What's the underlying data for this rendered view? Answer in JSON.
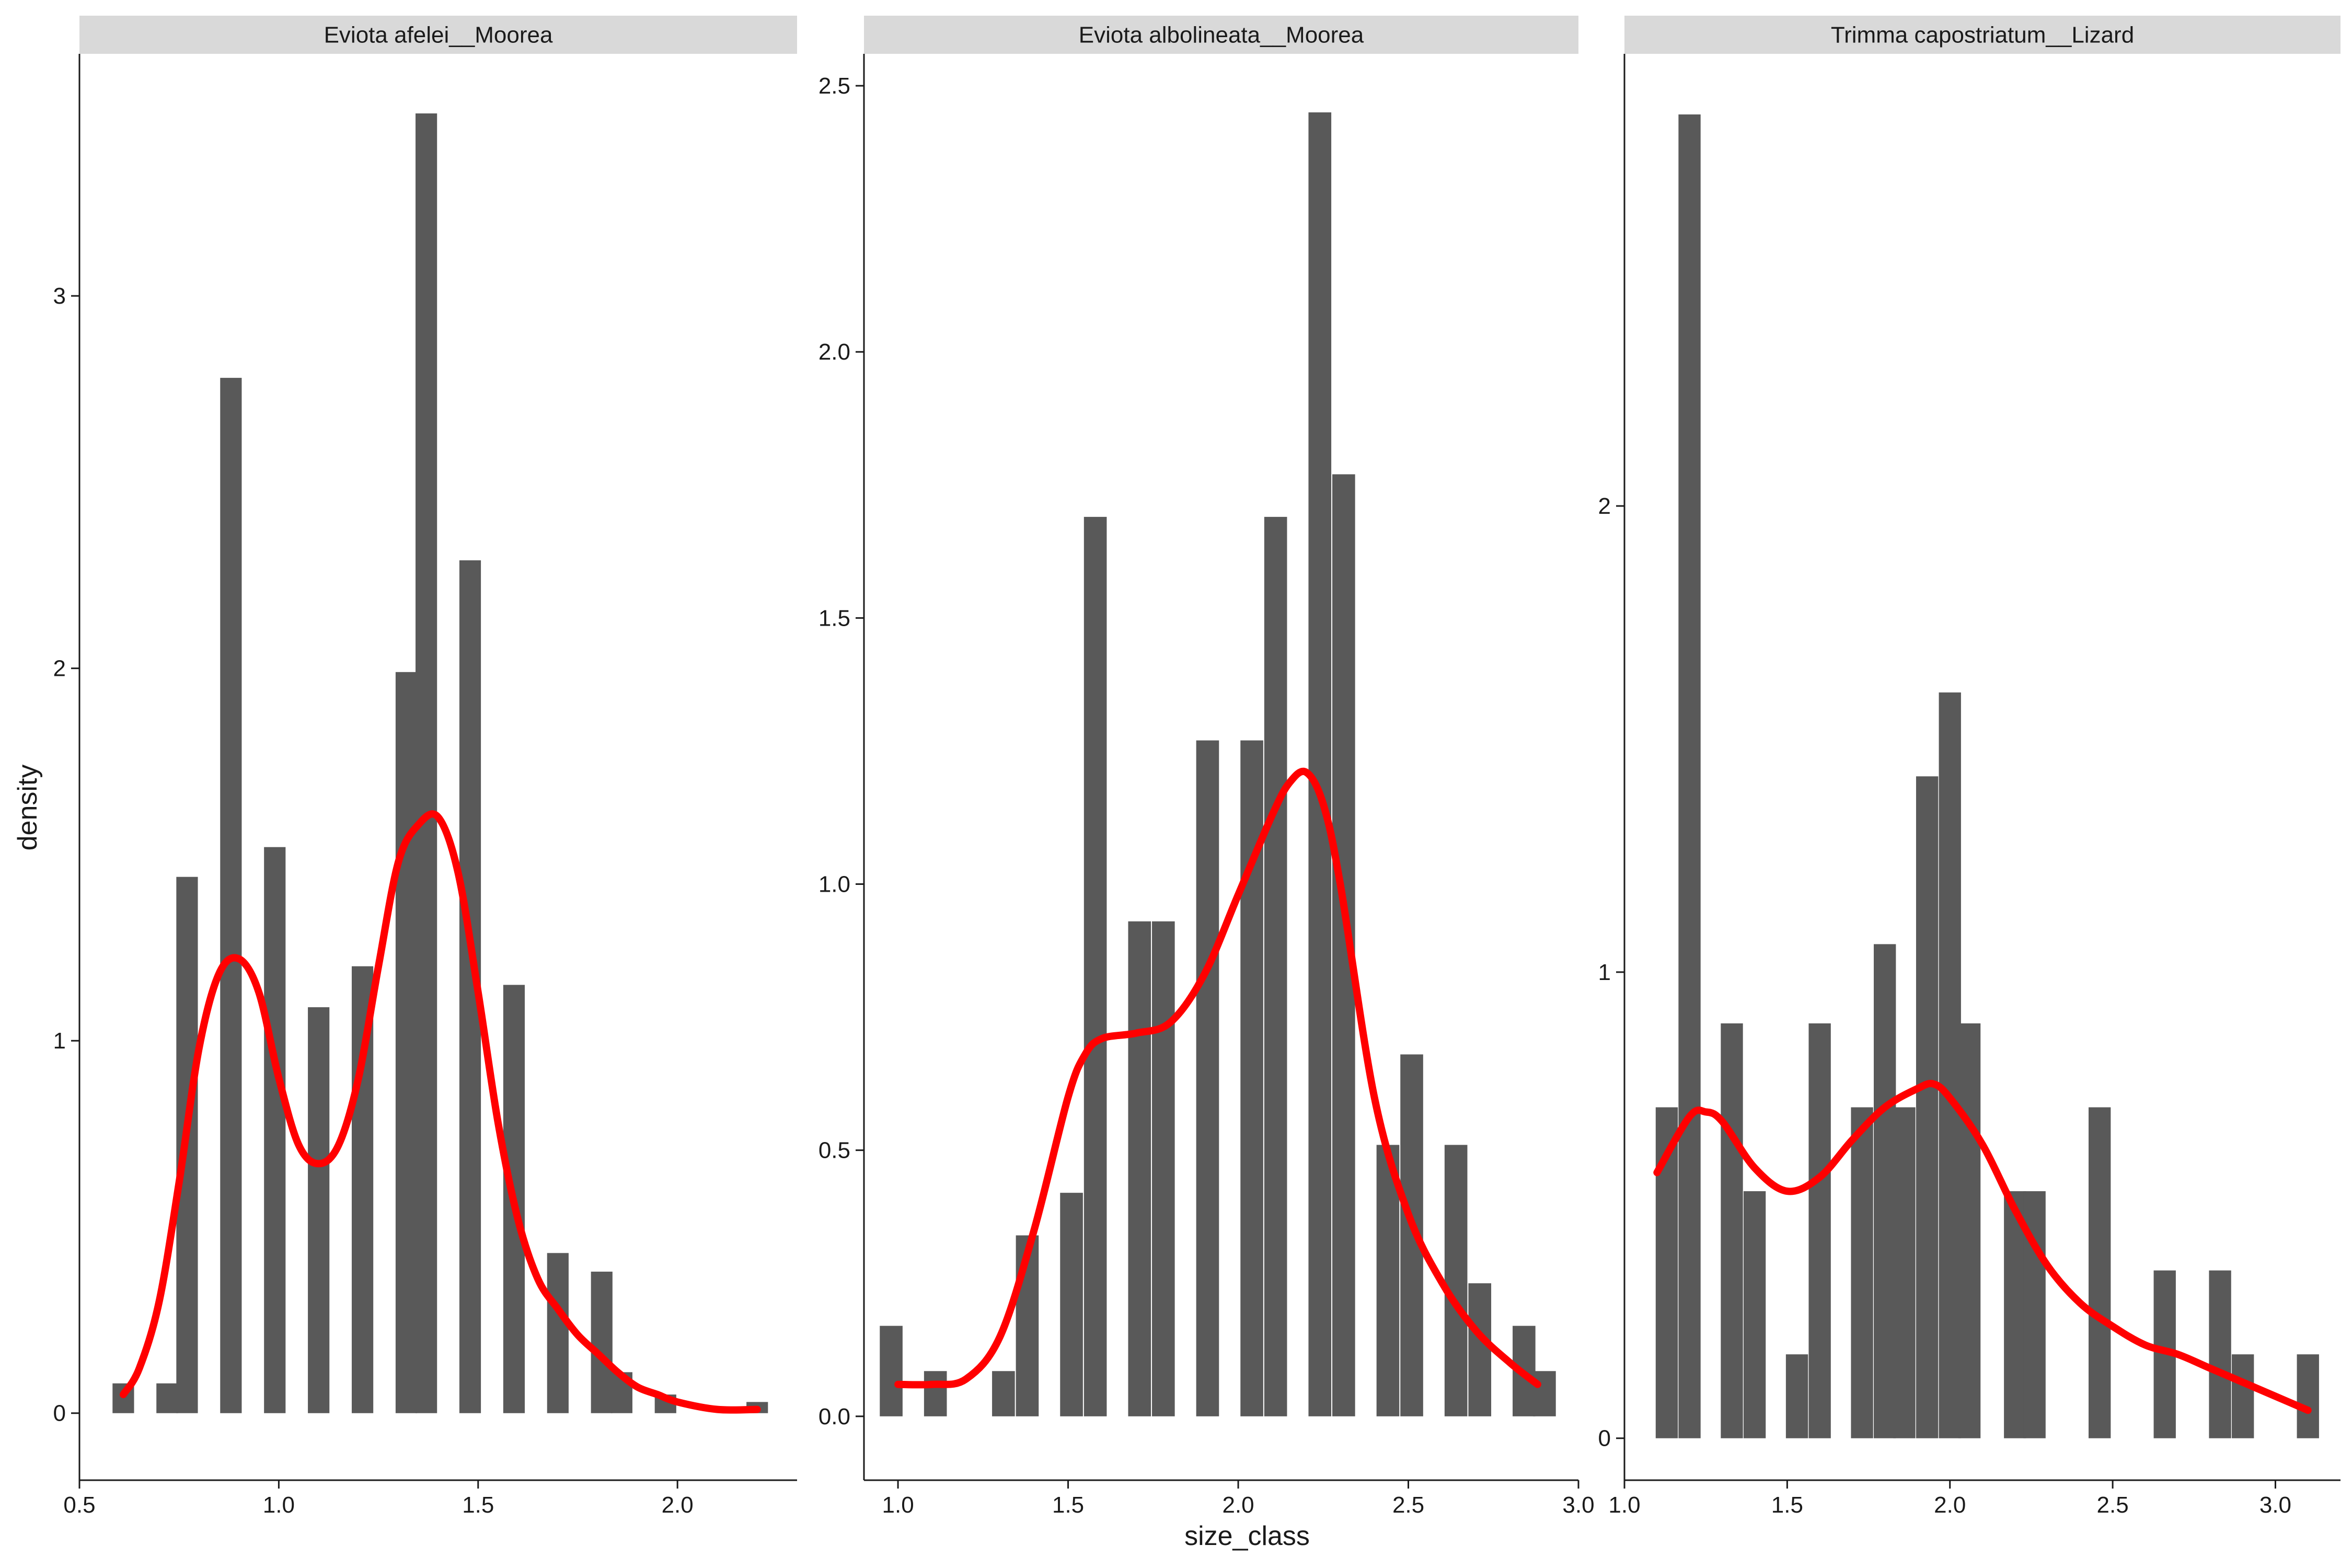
{
  "chart_data": {
    "type": "bar",
    "xlabel": "size_class",
    "ylabel": "density",
    "colors": {
      "bar": "#595959",
      "density_line": "#ff0000",
      "strip": "#d9d9d9",
      "axis": "#1a1a1a"
    },
    "legend": "none",
    "grid": false,
    "panels": [
      {
        "title": "Eviota afelei__Moorea",
        "xlim": [
          0.5,
          2.3
        ],
        "ylim": [
          -0.18,
          3.65
        ],
        "x_ticks": [
          0.5,
          1.0,
          1.5,
          2.0
        ],
        "x_tick_labels": [
          "0.5",
          "1.0",
          "1.5",
          "2.0"
        ],
        "y_ticks": [
          0,
          1,
          2,
          3
        ],
        "y_tick_labels": [
          "0",
          "1",
          "2",
          "3"
        ],
        "bin_width": 0.054,
        "bars": {
          "x": [
            0.61,
            0.72,
            0.77,
            0.88,
            0.99,
            1.1,
            1.21,
            1.32,
            1.37,
            1.48,
            1.59,
            1.7,
            1.81,
            1.86,
            1.97,
            2.2
          ],
          "density": [
            0.08,
            0.08,
            1.44,
            2.78,
            1.52,
            1.09,
            1.2,
            1.99,
            3.49,
            2.29,
            1.15,
            0.43,
            0.38,
            0.11,
            0.05,
            0.03
          ]
        },
        "density_curve": {
          "x": [
            0.61,
            0.65,
            0.7,
            0.75,
            0.8,
            0.85,
            0.9,
            0.95,
            1.0,
            1.05,
            1.1,
            1.15,
            1.2,
            1.25,
            1.3,
            1.35,
            1.4,
            1.45,
            1.5,
            1.55,
            1.6,
            1.65,
            1.7,
            1.75,
            1.8,
            1.85,
            1.9,
            1.95,
            2.0,
            2.1,
            2.2
          ],
          "y": [
            0.05,
            0.12,
            0.3,
            0.62,
            0.98,
            1.18,
            1.22,
            1.13,
            0.9,
            0.72,
            0.67,
            0.72,
            0.9,
            1.2,
            1.48,
            1.58,
            1.6,
            1.45,
            1.13,
            0.78,
            0.52,
            0.36,
            0.28,
            0.21,
            0.16,
            0.11,
            0.07,
            0.05,
            0.03,
            0.01,
            0.01
          ]
        }
      },
      {
        "title": "Eviota albolineata__Moorea",
        "xlim": [
          0.9,
          3.0
        ],
        "ylim": [
          -0.12,
          2.56
        ],
        "x_ticks": [
          1.0,
          1.5,
          2.0,
          2.5,
          3.0
        ],
        "x_tick_labels": [
          "1.0",
          "1.5",
          "2.0",
          "2.5",
          "3.0"
        ],
        "y_ticks": [
          0.0,
          0.5,
          1.0,
          1.5,
          2.0,
          2.5
        ],
        "y_tick_labels": [
          "0.0",
          "0.5",
          "1.0",
          "1.5",
          "2.0",
          "2.5"
        ],
        "bin_width": 0.067,
        "bars": {
          "x": [
            0.98,
            1.11,
            1.31,
            1.38,
            1.51,
            1.58,
            1.71,
            1.78,
            1.91,
            2.04,
            2.11,
            2.24,
            2.31,
            2.44,
            2.51,
            2.64,
            2.71,
            2.84,
            2.9
          ],
          "density": [
            0.17,
            0.085,
            0.085,
            0.34,
            0.42,
            1.69,
            0.93,
            0.93,
            1.27,
            1.27,
            1.69,
            2.45,
            1.77,
            0.51,
            0.68,
            0.51,
            0.25,
            0.17,
            0.085
          ]
        },
        "density_curve": {
          "x": [
            1.0,
            1.1,
            1.2,
            1.3,
            1.4,
            1.5,
            1.55,
            1.6,
            1.7,
            1.8,
            1.9,
            2.0,
            2.1,
            2.15,
            2.2,
            2.25,
            2.3,
            2.4,
            2.5,
            2.6,
            2.7,
            2.8,
            2.88
          ],
          "y": [
            0.06,
            0.06,
            0.07,
            0.15,
            0.35,
            0.6,
            0.68,
            0.71,
            0.72,
            0.74,
            0.83,
            0.98,
            1.13,
            1.19,
            1.21,
            1.15,
            1.0,
            0.6,
            0.38,
            0.25,
            0.16,
            0.1,
            0.06
          ]
        }
      },
      {
        "title": "Trimma capostriatum__Lizard",
        "xlim": [
          1.0,
          3.2
        ],
        "ylim": [
          -0.09,
          2.97
        ],
        "x_ticks": [
          1.0,
          1.5,
          2.0,
          2.5,
          3.0
        ],
        "x_tick_labels": [
          "1.0",
          "1.5",
          "2.0",
          "2.5",
          "3.0"
        ],
        "y_ticks": [
          0,
          1,
          2
        ],
        "y_tick_labels": [
          "0",
          "1",
          "2"
        ],
        "bin_width": 0.068,
        "bars": {
          "x": [
            1.13,
            1.2,
            1.33,
            1.4,
            1.53,
            1.6,
            1.73,
            1.8,
            1.86,
            1.93,
            2.0,
            2.06,
            2.2,
            2.26,
            2.46,
            2.66,
            2.83,
            2.9,
            3.1
          ],
          "density": [
            0.71,
            2.84,
            0.89,
            0.53,
            0.18,
            0.89,
            0.71,
            1.06,
            0.71,
            1.42,
            1.6,
            0.89,
            0.53,
            0.53,
            0.71,
            0.36,
            0.36,
            0.18,
            0.18
          ]
        },
        "density_curve": {
          "x": [
            1.1,
            1.2,
            1.25,
            1.3,
            1.4,
            1.5,
            1.6,
            1.7,
            1.8,
            1.9,
            1.95,
            2.0,
            2.1,
            2.2,
            2.3,
            2.4,
            2.5,
            2.6,
            2.7,
            2.8,
            2.9,
            3.0,
            3.1
          ],
          "y": [
            0.57,
            0.69,
            0.7,
            0.68,
            0.58,
            0.53,
            0.56,
            0.64,
            0.71,
            0.75,
            0.76,
            0.73,
            0.63,
            0.49,
            0.37,
            0.29,
            0.24,
            0.2,
            0.18,
            0.15,
            0.12,
            0.09,
            0.06
          ]
        }
      }
    ]
  }
}
